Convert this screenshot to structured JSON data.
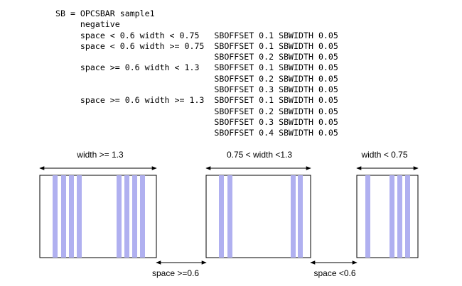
{
  "code": {
    "lines": [
      "SB = OPCSBAR sample1",
      "     negative",
      "     space < 0.6 width < 0.75   SBOFFSET 0.1 SBWIDTH 0.05",
      "     space < 0.6 width >= 0.75  SBOFFSET 0.1 SBWIDTH 0.05",
      "                                SBOFFSET 0.2 SBWIDTH 0.05",
      "     space >= 0.6 width < 1.3   SBOFFSET 0.1 SBWIDTH 0.05",
      "                                SBOFFSET 0.2 SBWIDTH 0.05",
      "                                SBOFFSET 0.3 SBWIDTH 0.05",
      "     space >= 0.6 width >= 1.3  SBOFFSET 0.1 SBWIDTH 0.05",
      "                                SBOFFSET 0.2 SBWIDTH 0.05",
      "                                SBOFFSET 0.3 SBWIDTH 0.05",
      "                                SBOFFSET 0.4 SBWIDTH 0.05"
    ]
  },
  "diagram": {
    "width_labels": {
      "left": "width >= 1.3",
      "middle": "0.75 < width <1.3",
      "right": "width < 0.75"
    },
    "space_labels": {
      "left": "space >=0.6",
      "right": "space <0.6"
    },
    "colors": {
      "scatter_bar": "#b0b0f0",
      "outline": "#000000"
    }
  }
}
